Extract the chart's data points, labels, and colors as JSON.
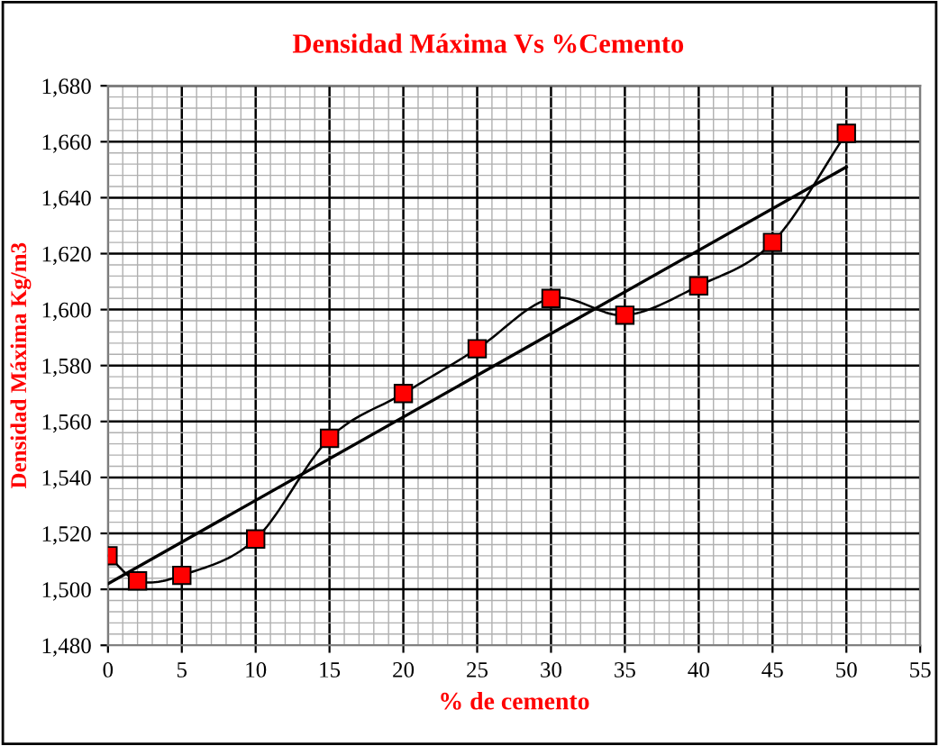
{
  "chart_data": {
    "type": "line",
    "title": "Densidad Máxima Vs %Cemento",
    "xlabel": "% de cemento",
    "ylabel": "Densidad Máxima Kg/m3",
    "series": [
      {
        "x": [
          0,
          2,
          5,
          10,
          15,
          20,
          25,
          30,
          35,
          40,
          45,
          50
        ],
        "values": [
          1512,
          1503,
          1505,
          1518,
          1554,
          1570,
          1586,
          1604,
          1598,
          1608.5,
          1624,
          1663
        ],
        "color": "#ff0000",
        "marker": "square"
      },
      {
        "type": "line",
        "x": [
          0,
          50
        ],
        "values": [
          1502,
          1651
        ],
        "color": "#000000",
        "marker": "none"
      }
    ],
    "xlim": [
      0,
      55
    ],
    "xticks": [
      0,
      5,
      10,
      15,
      20,
      25,
      30,
      35,
      40,
      45,
      50,
      55
    ],
    "ylim": [
      1480,
      1680
    ],
    "yticks": [
      {
        "value": 1480,
        "label": "1,480"
      },
      {
        "value": 1500,
        "label": "1,500"
      },
      {
        "value": 1520,
        "label": "1,520"
      },
      {
        "value": 1540,
        "label": "1,540"
      },
      {
        "value": 1560,
        "label": "1,560"
      },
      {
        "value": 1580,
        "label": "1,580"
      },
      {
        "value": 1600,
        "label": "1,600"
      },
      {
        "value": 1620,
        "label": "1,620"
      },
      {
        "value": 1640,
        "label": "1,640"
      },
      {
        "value": 1660,
        "label": "1,660"
      },
      {
        "value": 1680,
        "label": "1,680"
      }
    ],
    "grid": true
  }
}
